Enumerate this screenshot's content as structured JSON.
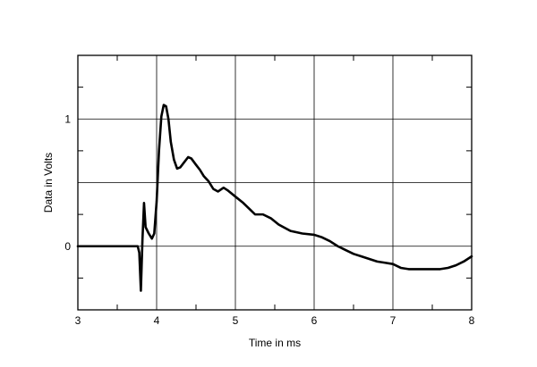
{
  "chart_data": {
    "type": "line",
    "title": "",
    "xlabel": "Time in ms",
    "ylabel": "Data in Volts",
    "xlim": [
      3,
      8
    ],
    "ylim": [
      -0.5,
      1.5
    ],
    "grid": true,
    "x_ticks": [
      3,
      4,
      5,
      6,
      7,
      8
    ],
    "y_ticks_labeled": [
      0,
      1
    ],
    "y_gridlines": [
      -0.5,
      0,
      0.5,
      1,
      1.5
    ],
    "line_color": "#000000",
    "series": [
      {
        "x": [
          3.0,
          3.5,
          3.76,
          3.78,
          3.8,
          3.82,
          3.84,
          3.86,
          3.9,
          3.94,
          3.97,
          4.0,
          4.03,
          4.06,
          4.09,
          4.12,
          4.15,
          4.18,
          4.22,
          4.26,
          4.3,
          4.35,
          4.4,
          4.44,
          4.5,
          4.55,
          4.6,
          4.66,
          4.72,
          4.78,
          4.85,
          4.9,
          5.0,
          5.1,
          5.2,
          5.25,
          5.35,
          5.45,
          5.55,
          5.7,
          5.85,
          6.0,
          6.1,
          6.2,
          6.3,
          6.4,
          6.5,
          6.6,
          6.7,
          6.8,
          6.9,
          7.0,
          7.1,
          7.2,
          7.3,
          7.4,
          7.5,
          7.6,
          7.7,
          7.8,
          7.9,
          8.0
        ],
        "y": [
          0.0,
          0.0,
          0.0,
          -0.05,
          -0.35,
          0.05,
          0.34,
          0.15,
          0.1,
          0.06,
          0.1,
          0.35,
          0.75,
          1.02,
          1.11,
          1.1,
          1.0,
          0.82,
          0.68,
          0.61,
          0.62,
          0.66,
          0.7,
          0.69,
          0.64,
          0.6,
          0.55,
          0.51,
          0.45,
          0.43,
          0.46,
          0.44,
          0.39,
          0.34,
          0.28,
          0.25,
          0.25,
          0.22,
          0.17,
          0.12,
          0.1,
          0.09,
          0.07,
          0.04,
          0.0,
          -0.03,
          -0.06,
          -0.08,
          -0.1,
          -0.12,
          -0.13,
          -0.14,
          -0.17,
          -0.18,
          -0.18,
          -0.18,
          -0.18,
          -0.18,
          -0.17,
          -0.15,
          -0.12,
          -0.08
        ]
      }
    ]
  }
}
